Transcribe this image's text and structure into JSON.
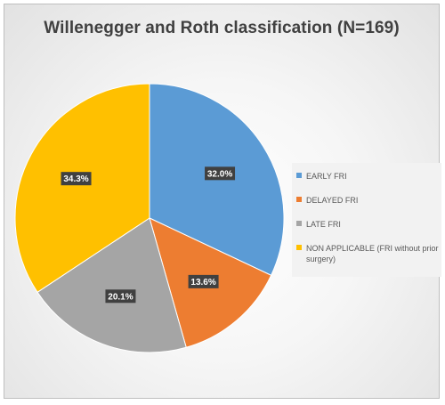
{
  "chart_data": {
    "type": "pie",
    "title": "Willenegger and Roth classification (N=169)",
    "slices": [
      {
        "name": "EARLY FRI",
        "value": 32.0,
        "label": "32.0%",
        "color": "#5b9bd5"
      },
      {
        "name": "DELAYED FRI",
        "value": 13.6,
        "label": "13.6%",
        "color": "#ed7d31"
      },
      {
        "name": "LATE FRI",
        "value": 20.1,
        "label": "20.1%",
        "color": "#a5a5a5"
      },
      {
        "name": "NON APPLICABLE (FRI without prior surgery)",
        "value": 34.3,
        "label": "34.3%",
        "color": "#ffc000"
      }
    ],
    "legend_position": "right",
    "start_angle": "12 o'clock",
    "direction": "clockwise"
  }
}
